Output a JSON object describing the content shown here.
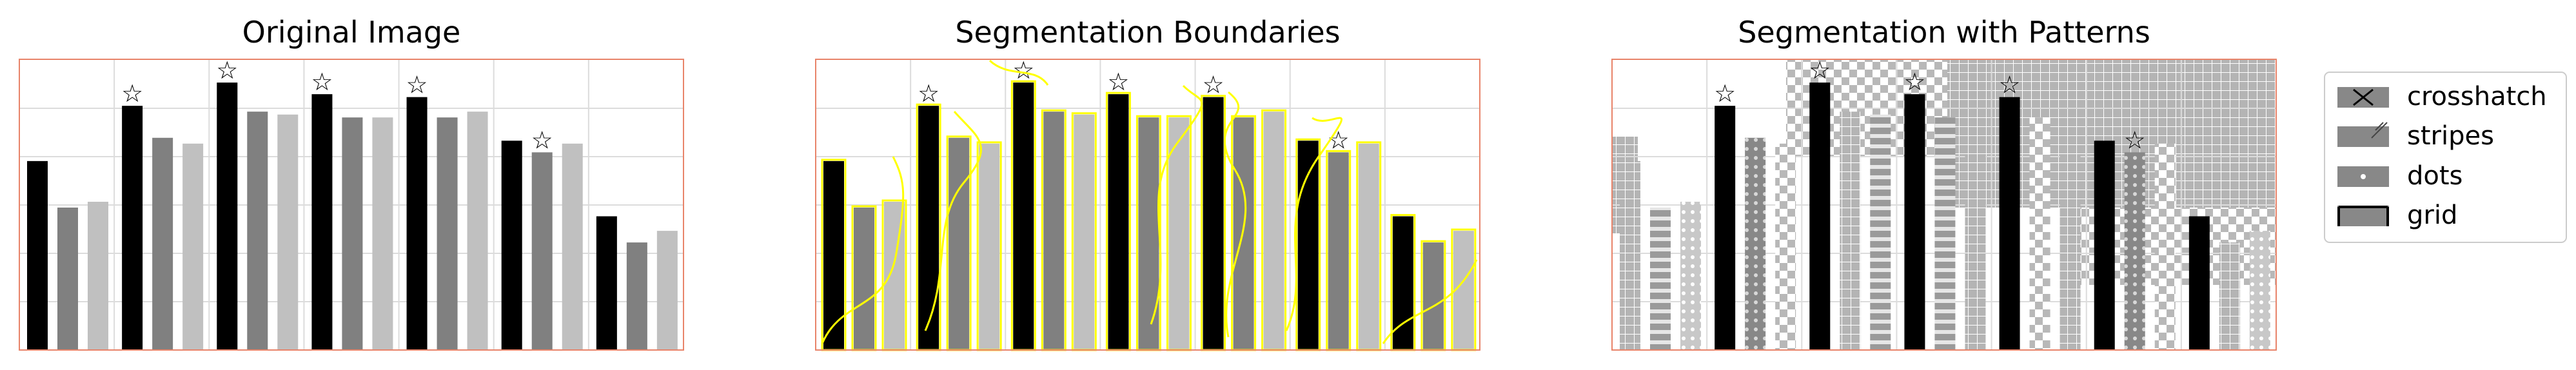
{
  "chart_data": [
    {
      "type": "bar",
      "title": "Original Image",
      "series": [
        {
          "color": "#000000",
          "values": [
            0.65,
            0.84,
            0.92,
            0.88,
            0.87,
            0.72,
            0.46
          ]
        },
        {
          "color": "#808080",
          "values": [
            0.49,
            0.73,
            0.82,
            0.8,
            0.8,
            0.68,
            0.37
          ]
        },
        {
          "color": "#c0c0c0",
          "values": [
            0.51,
            0.71,
            0.81,
            0.8,
            0.82,
            0.71,
            0.41
          ]
        }
      ],
      "ylim": [
        0,
        1
      ],
      "grid": true,
      "annotations": [
        {
          "glyph": "☆",
          "group": 1,
          "series": 0
        },
        {
          "glyph": "☆",
          "group": 2,
          "series": 0
        },
        {
          "glyph": "☆",
          "group": 3,
          "series": 0
        },
        {
          "glyph": "☆",
          "group": 4,
          "series": 0
        },
        {
          "glyph": "☆",
          "group": 5,
          "series": 1
        }
      ]
    },
    {
      "type": "bar",
      "title": "Segmentation Boundaries",
      "overlay": "yellow segmentation boundaries",
      "boundary_color": "#ffff00"
    },
    {
      "type": "bar",
      "title": "Segmentation with Patterns",
      "overlay": "pattern fills"
    }
  ],
  "legend": {
    "placement": "right",
    "items": [
      {
        "label": "crosshatch",
        "pattern": "crosshatch"
      },
      {
        "label": "stripes",
        "pattern": "stripes"
      },
      {
        "label": "dots",
        "pattern": "dots"
      },
      {
        "label": "grid",
        "pattern": "grid"
      }
    ]
  },
  "colors": {
    "frame": "#e8846a",
    "gridline": "#dcdcdc",
    "boundary": "#ffff00"
  }
}
